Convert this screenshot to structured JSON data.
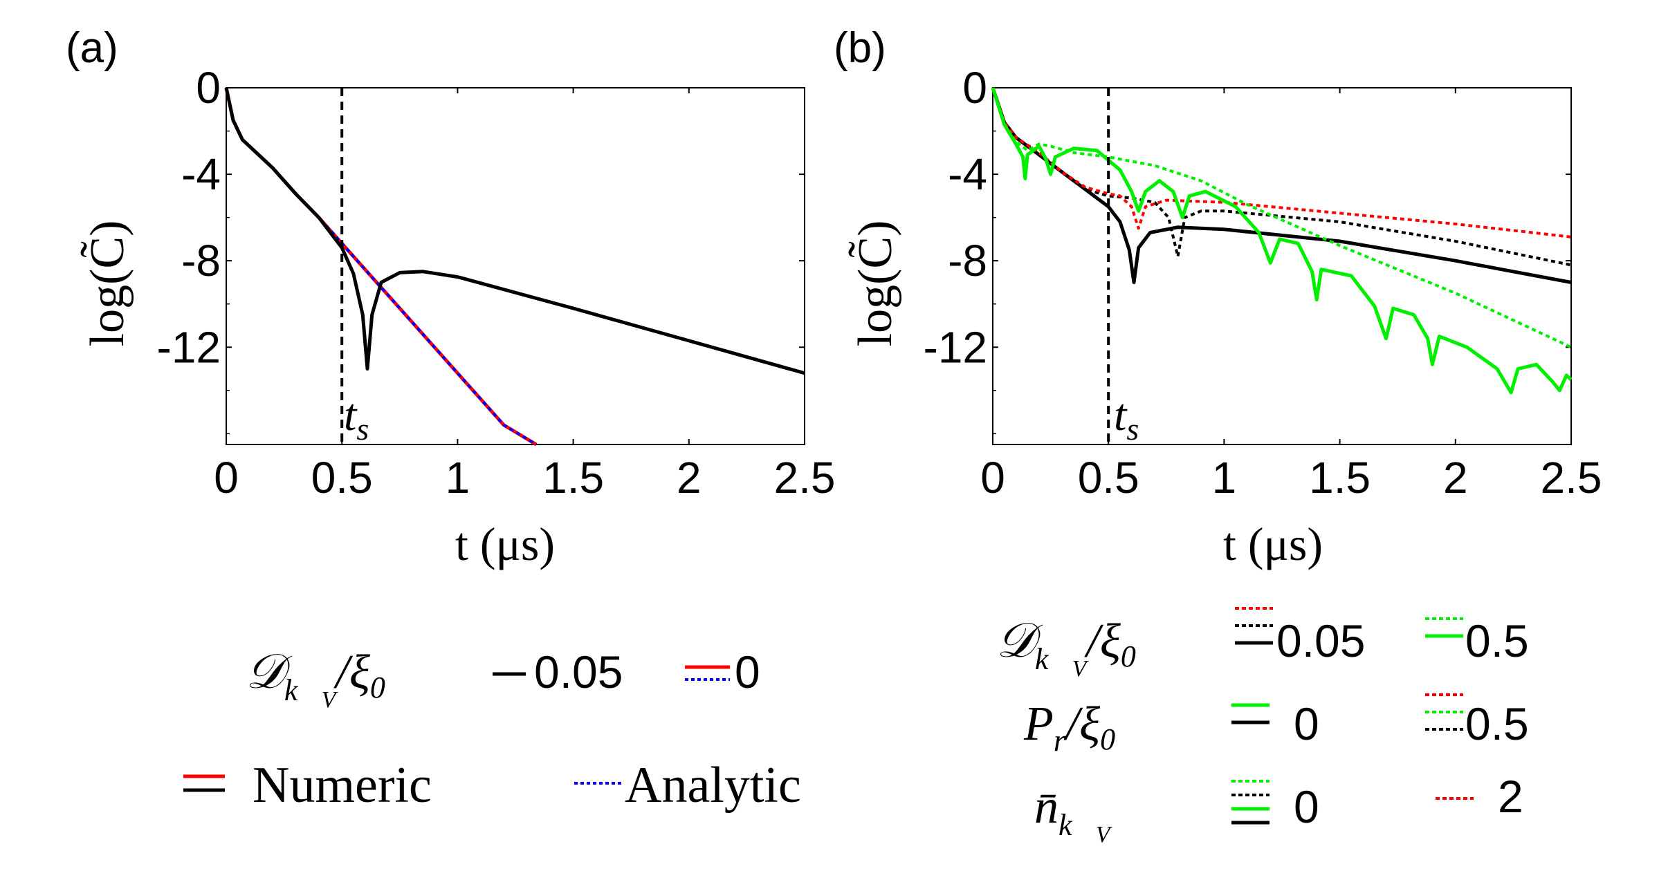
{
  "chart_data": [
    {
      "type": "line",
      "panel_label": "(a)",
      "xlabel": "t (μs)",
      "ylabel": "log(C̃)",
      "xlim": [
        0,
        2.5
      ],
      "ylim": [
        -16.5,
        0
      ],
      "xticks": [
        "0",
        "0.5",
        "1",
        "1.5",
        "2",
        "2.5"
      ],
      "yticks": [
        "0",
        "-4",
        "-8",
        "-12"
      ],
      "vline": {
        "x": 0.5,
        "label": "ts"
      },
      "series": [
        {
          "name": "Numeric, D/ξ0 = 0",
          "color": "#ff0000",
          "style": "solid",
          "points": [
            [
              0,
              0
            ],
            [
              0.03,
              -1.5
            ],
            [
              0.07,
              -2.4
            ],
            [
              0.12,
              -2.9
            ],
            [
              0.2,
              -3.7
            ],
            [
              0.3,
              -4.9
            ],
            [
              0.4,
              -6.0
            ],
            [
              0.5,
              -7.2
            ],
            [
              0.6,
              -8.4
            ],
            [
              0.7,
              -9.6
            ],
            [
              0.8,
              -10.8
            ],
            [
              0.9,
              -12.0
            ],
            [
              1.0,
              -13.2
            ],
            [
              1.1,
              -14.4
            ],
            [
              1.2,
              -15.6
            ],
            [
              1.34,
              -16.5
            ]
          ]
        },
        {
          "name": "Analytic, D/ξ0 = 0",
          "color": "#0000ff",
          "style": "dotted",
          "points": [
            [
              0,
              0
            ],
            [
              0.03,
              -1.5
            ],
            [
              0.07,
              -2.4
            ],
            [
              0.12,
              -2.9
            ],
            [
              0.2,
              -3.7
            ],
            [
              0.3,
              -4.9
            ],
            [
              0.4,
              -6.0
            ],
            [
              0.5,
              -7.2
            ],
            [
              0.6,
              -8.4
            ],
            [
              0.7,
              -9.6
            ],
            [
              0.8,
              -10.8
            ],
            [
              0.9,
              -12.0
            ],
            [
              1.0,
              -13.2
            ],
            [
              1.1,
              -14.4
            ],
            [
              1.2,
              -15.6
            ],
            [
              1.34,
              -16.5
            ]
          ]
        },
        {
          "name": "Numeric, D/ξ0 = 0.05",
          "color": "#000000",
          "style": "solid",
          "points": [
            [
              0,
              0
            ],
            [
              0.03,
              -1.5
            ],
            [
              0.07,
              -2.4
            ],
            [
              0.12,
              -2.9
            ],
            [
              0.2,
              -3.7
            ],
            [
              0.3,
              -4.9
            ],
            [
              0.4,
              -6.0
            ],
            [
              0.5,
              -7.4
            ],
            [
              0.55,
              -8.6
            ],
            [
              0.59,
              -10.5
            ],
            [
              0.61,
              -13.0
            ],
            [
              0.63,
              -10.5
            ],
            [
              0.67,
              -9.0
            ],
            [
              0.75,
              -8.55
            ],
            [
              0.85,
              -8.5
            ],
            [
              1.0,
              -8.75
            ],
            [
              1.5,
              -10.2
            ],
            [
              2.0,
              -11.7
            ],
            [
              2.5,
              -13.2
            ]
          ]
        }
      ],
      "legend": {
        "d_symbol": "𝒟",
        "d_sub": "k⃗",
        "d_subsub": "V",
        "d_rest": "/ξ",
        "d_zero": "0",
        "d_values": [
          "0.05",
          "0"
        ],
        "numeric": "Numeric",
        "analytic": "Analytic"
      }
    },
    {
      "type": "line",
      "panel_label": "(b)",
      "xlabel": "t (μs)",
      "ylabel": "log(C̃)",
      "xlim": [
        0,
        2.5
      ],
      "ylim": [
        -16.5,
        0
      ],
      "xticks": [
        "0",
        "0.5",
        "1",
        "1.5",
        "2",
        "2.5"
      ],
      "yticks": [
        "0",
        "-4",
        "-8",
        "-12"
      ],
      "vline": {
        "x": 0.5,
        "label": "ts"
      },
      "series": [
        {
          "name": "D=0.05, Pr=0, n=0",
          "color": "#000000",
          "style": "solid",
          "points": [
            [
              0,
              0
            ],
            [
              0.05,
              -1.6
            ],
            [
              0.1,
              -2.3
            ],
            [
              0.2,
              -3.1
            ],
            [
              0.3,
              -3.9
            ],
            [
              0.4,
              -4.7
            ],
            [
              0.5,
              -5.5
            ],
            [
              0.55,
              -6.2
            ],
            [
              0.59,
              -7.5
            ],
            [
              0.61,
              -9.0
            ],
            [
              0.63,
              -7.4
            ],
            [
              0.68,
              -6.7
            ],
            [
              0.8,
              -6.45
            ],
            [
              1.0,
              -6.55
            ],
            [
              1.5,
              -7.1
            ],
            [
              2.0,
              -8.0
            ],
            [
              2.5,
              -9.0
            ]
          ]
        },
        {
          "name": "D=0.05, Pr=0.5, n=0",
          "color": "#000000",
          "style": "dotted",
          "points": [
            [
              0,
              0
            ],
            [
              0.05,
              -1.6
            ],
            [
              0.1,
              -2.3
            ],
            [
              0.2,
              -3.0
            ],
            [
              0.3,
              -3.9
            ],
            [
              0.4,
              -4.7
            ],
            [
              0.5,
              -5.0
            ],
            [
              0.6,
              -5.1
            ],
            [
              0.7,
              -5.3
            ],
            [
              0.76,
              -6.0
            ],
            [
              0.8,
              -7.8
            ],
            [
              0.83,
              -6.0
            ],
            [
              0.9,
              -5.7
            ],
            [
              1.0,
              -5.7
            ],
            [
              1.5,
              -6.2
            ],
            [
              2.0,
              -7.1
            ],
            [
              2.5,
              -8.2
            ]
          ]
        },
        {
          "name": "D=0.05, Pr=0.5, n=2",
          "color": "#ff0000",
          "style": "dotted",
          "points": [
            [
              0,
              0
            ],
            [
              0.05,
              -1.6
            ],
            [
              0.1,
              -2.3
            ],
            [
              0.2,
              -3.0
            ],
            [
              0.3,
              -3.9
            ],
            [
              0.4,
              -4.6
            ],
            [
              0.5,
              -4.9
            ],
            [
              0.55,
              -5.0
            ],
            [
              0.6,
              -5.5
            ],
            [
              0.63,
              -6.5
            ],
            [
              0.66,
              -5.5
            ],
            [
              0.75,
              -5.2
            ],
            [
              1.0,
              -5.3
            ],
            [
              1.5,
              -5.8
            ],
            [
              2.0,
              -6.3
            ],
            [
              2.5,
              -6.9
            ]
          ]
        },
        {
          "name": "D=0.5, Pr=0.5, n=0",
          "color": "#00ee00",
          "style": "dotted",
          "points": [
            [
              0,
              0
            ],
            [
              0.05,
              -1.7
            ],
            [
              0.1,
              -2.5
            ],
            [
              0.15,
              -2.9
            ],
            [
              0.2,
              -2.6
            ],
            [
              0.25,
              -2.7
            ],
            [
              0.35,
              -3.0
            ],
            [
              0.5,
              -3.2
            ],
            [
              0.7,
              -3.6
            ],
            [
              0.9,
              -4.3
            ],
            [
              1.1,
              -5.4
            ],
            [
              1.5,
              -7.3
            ],
            [
              2.0,
              -9.5
            ],
            [
              2.5,
              -12.0
            ]
          ]
        },
        {
          "name": "D=0.5, Pr=0, n=0",
          "color": "#00ee00",
          "style": "solid",
          "points": [
            [
              0,
              0
            ],
            [
              0.05,
              -1.7
            ],
            [
              0.1,
              -2.6
            ],
            [
              0.13,
              -3.2
            ],
            [
              0.14,
              -4.2
            ],
            [
              0.15,
              -3.1
            ],
            [
              0.2,
              -2.7
            ],
            [
              0.23,
              -3.3
            ],
            [
              0.25,
              -4.0
            ],
            [
              0.27,
              -3.2
            ],
            [
              0.35,
              -2.8
            ],
            [
              0.45,
              -2.9
            ],
            [
              0.55,
              -3.8
            ],
            [
              0.6,
              -4.8
            ],
            [
              0.63,
              -5.7
            ],
            [
              0.66,
              -4.8
            ],
            [
              0.72,
              -4.3
            ],
            [
              0.78,
              -4.8
            ],
            [
              0.82,
              -6.0
            ],
            [
              0.85,
              -5.0
            ],
            [
              0.92,
              -4.8
            ],
            [
              1.05,
              -5.5
            ],
            [
              1.15,
              -6.7
            ],
            [
              1.2,
              -8.1
            ],
            [
              1.24,
              -7.0
            ],
            [
              1.32,
              -7.2
            ],
            [
              1.38,
              -8.5
            ],
            [
              1.4,
              -9.8
            ],
            [
              1.42,
              -8.4
            ],
            [
              1.55,
              -8.7
            ],
            [
              1.65,
              -10.1
            ],
            [
              1.7,
              -11.6
            ],
            [
              1.73,
              -10.2
            ],
            [
              1.82,
              -10.5
            ],
            [
              1.88,
              -11.6
            ],
            [
              1.9,
              -12.8
            ],
            [
              1.93,
              -11.5
            ],
            [
              2.05,
              -12.0
            ],
            [
              2.18,
              -13.0
            ],
            [
              2.24,
              -14.1
            ],
            [
              2.27,
              -13.0
            ],
            [
              2.35,
              -12.8
            ],
            [
              2.42,
              -13.6
            ],
            [
              2.45,
              -14.0
            ],
            [
              2.48,
              -13.3
            ],
            [
              2.5,
              -13.5
            ]
          ]
        }
      ],
      "legend": {
        "d_symbol": "𝒟",
        "d_sub": "k⃗",
        "d_subsub": "V",
        "d_rest": "/ξ",
        "d_zero": "0",
        "d_values": [
          "0.05",
          "0.5"
        ],
        "p_symbol": "P",
        "p_sub": "r",
        "p_rest": "/ξ",
        "p_zero": "0",
        "p_values": [
          "0",
          "0.5"
        ],
        "n_symbol": "n̄",
        "n_sub": "k⃗",
        "n_subsub": "V",
        "n_values": [
          "0",
          "2"
        ]
      }
    }
  ]
}
